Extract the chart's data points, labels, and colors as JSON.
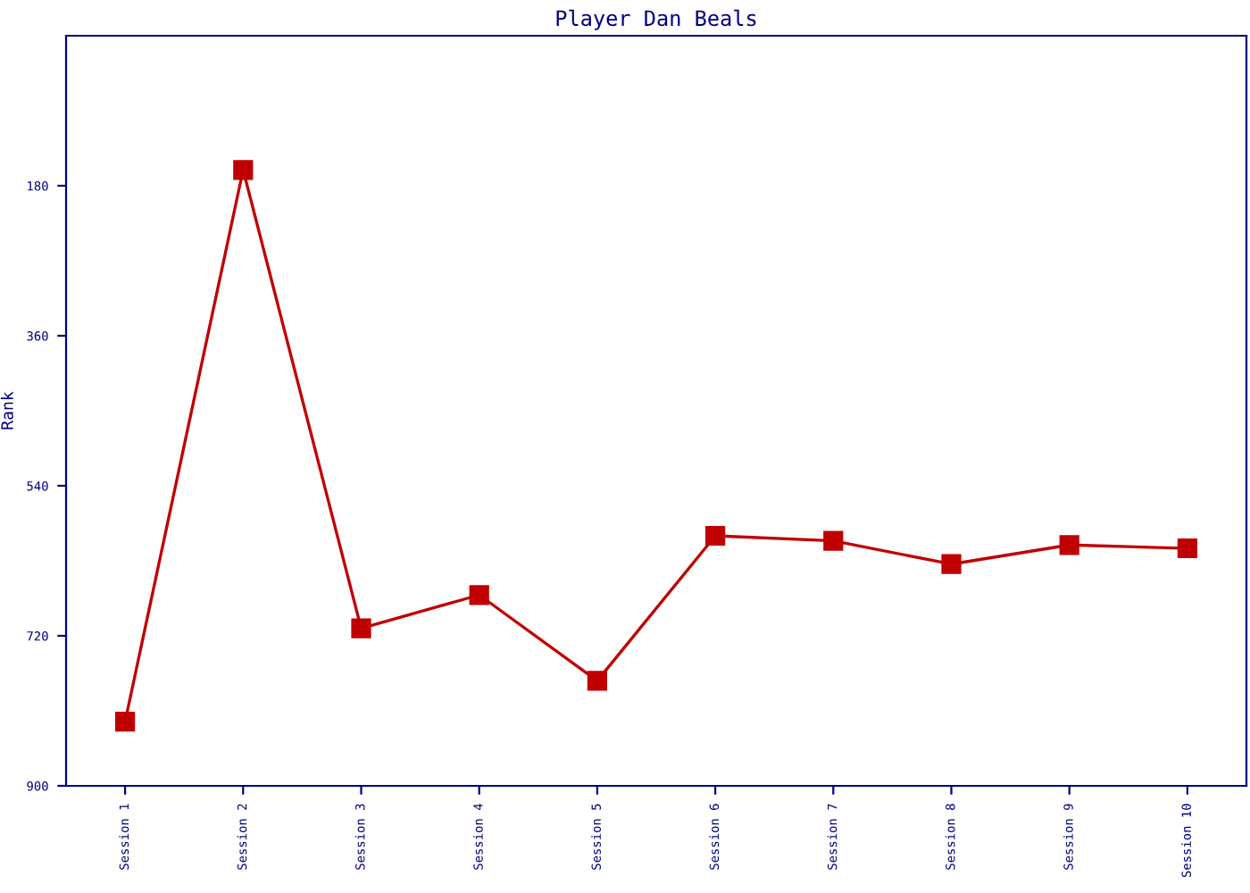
{
  "chart_data": {
    "type": "line",
    "title": "Player Dan Beals",
    "ylabel": "Rank",
    "categories": [
      "Session 1",
      "Session 2",
      "Session 3",
      "Session 4",
      "Session 5",
      "Session 6",
      "Session 7",
      "Session 8",
      "Session 9",
      "Session 10"
    ],
    "series": [
      {
        "color": "#c00000",
        "values": [
          823,
          161,
          711,
          671,
          774,
          600,
          606,
          634,
          611,
          615
        ]
      }
    ],
    "ylim": [
      900,
      0
    ],
    "yticks": [
      180,
      360,
      540,
      720,
      900
    ],
    "marker": "square",
    "line_style": "solid",
    "grid": false,
    "legend": false
  }
}
